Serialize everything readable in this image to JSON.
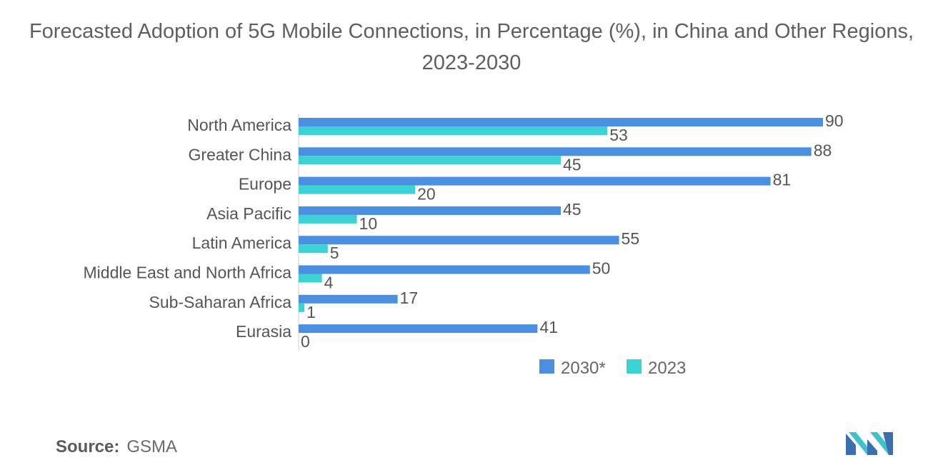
{
  "chart_data": {
    "type": "bar",
    "orientation": "horizontal",
    "title": "Forecasted Adoption of 5G Mobile Connections, in Percentage (%), in China and Other Regions, 2023-2030",
    "categories": [
      "North America",
      "Greater China",
      "Europe",
      "Asia Pacific",
      "Latin America",
      "Middle East and North Africa",
      "Sub-Saharan Africa",
      "Eurasia"
    ],
    "series": [
      {
        "name": "2030*",
        "color": "#4a8fe0",
        "values": [
          90,
          88,
          81,
          45,
          55,
          50,
          17,
          41
        ]
      },
      {
        "name": "2023",
        "color": "#3dd3d6",
        "values": [
          53,
          45,
          20,
          10,
          5,
          4,
          1,
          0
        ]
      }
    ],
    "xlim": [
      0,
      90
    ],
    "xlabel": "",
    "ylabel": "",
    "legend_position": "bottom",
    "grid": false
  },
  "source": {
    "label": "Source:",
    "value": "GSMA"
  }
}
